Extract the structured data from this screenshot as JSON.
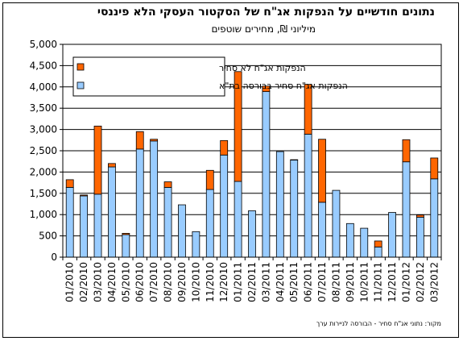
{
  "chart_data": {
    "type": "bar",
    "stacked": true,
    "title": "נתונים חודשיים על הנפקות אג\"ח של הסקטור העסקי הלא פיננסי",
    "subtitle": "מיליוני ₪, מחירים שוטפים",
    "source": "מקור: נתוני אג\"ח סחיר - הבורסה לניירות ערך",
    "categories": [
      "01/2010",
      "02/2010",
      "03/2010",
      "04/2010",
      "05/2010",
      "06/2010",
      "07/2010",
      "08/2010",
      "09/2010",
      "10/2010",
      "11/2010",
      "12/2010",
      "01/2011",
      "02/2011",
      "03/2011",
      "04/2011",
      "05/2011",
      "06/2011",
      "07/2011",
      "08/2011",
      "09/2011",
      "10/2011",
      "11/2011",
      "12/2011",
      "01/2012",
      "02/2012",
      "03/2012"
    ],
    "x_tick_labels": [
      "01/2010",
      "02/2010",
      "03/2010",
      "04/2010",
      "05/2010",
      "06/2010",
      "07/2010",
      "08/2010",
      "09/2010",
      "10/2010",
      "11/2010",
      "12/2010",
      "01/2011",
      "02/2011",
      "03/2011",
      "04/2011",
      "05/2011",
      "06/2011",
      "07/2011",
      "08/2011",
      "09/2011",
      "10/2011",
      "11/2011",
      "12/2011",
      "01/2012",
      "02/2012",
      "03/2012"
    ],
    "series": [
      {
        "name": "הנפקות אג\"ח סחיר בבורסה בת\"א",
        "color": "#99CCFF",
        "values": [
          1640,
          1440,
          1480,
          2120,
          530,
          2540,
          2730,
          1640,
          1230,
          600,
          1590,
          2400,
          1780,
          1090,
          3890,
          2480,
          2280,
          2890,
          1290,
          1570,
          790,
          680,
          240,
          1050,
          2240,
          940,
          1840
        ]
      },
      {
        "name": "הנפקות אג\"ח לא סחיר",
        "color": "#FF6600",
        "values": [
          180,
          20,
          1600,
          80,
          30,
          410,
          40,
          130,
          0,
          0,
          450,
          340,
          2580,
          0,
          130,
          0,
          10,
          1170,
          1480,
          0,
          0,
          0,
          140,
          0,
          520,
          50,
          490
        ]
      }
    ],
    "yticks": [
      0,
      500,
      1000,
      1500,
      2000,
      2500,
      3000,
      3500,
      4000,
      4500,
      5000
    ],
    "ytick_labels": [
      "0",
      "500",
      "1,000",
      "1,500",
      "2,000",
      "2,500",
      "3,000",
      "3,500",
      "4,000",
      "4,500",
      "5,000"
    ],
    "ylim": [
      0,
      5000
    ],
    "grid": true,
    "legend": "top-left"
  }
}
